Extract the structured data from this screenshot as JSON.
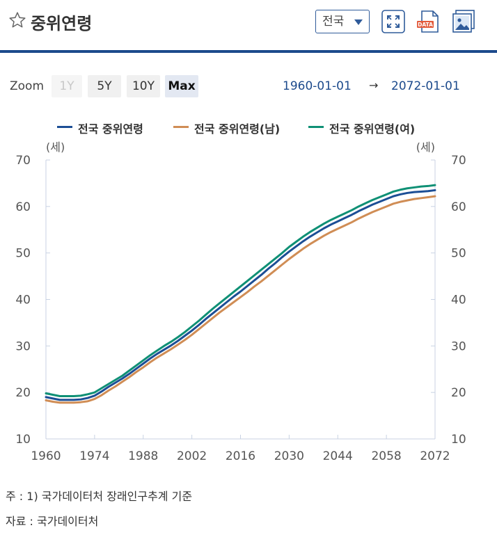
{
  "header": {
    "title": "중위연령",
    "region_select": "전국",
    "icons": [
      "star-outline-icon",
      "fullscreen-icon",
      "data-download-icon",
      "image-download-icon"
    ]
  },
  "zoom": {
    "label": "Zoom",
    "buttons": [
      {
        "label": "1Y",
        "state": "disabled"
      },
      {
        "label": "5Y",
        "state": "normal"
      },
      {
        "label": "10Y",
        "state": "normal"
      },
      {
        "label": "Max",
        "state": "active"
      }
    ],
    "range_start": "1960-01-01",
    "range_arrow": "→",
    "range_end": "2072-01-01"
  },
  "chart_data": {
    "type": "line",
    "xlabel": "",
    "ylabel_left": "(세)",
    "ylabel_right": "(세)",
    "ylim": [
      10,
      70
    ],
    "y_ticks": [
      10,
      20,
      30,
      40,
      50,
      60,
      70
    ],
    "x_ticks": [
      "1960",
      "1974",
      "1988",
      "2002",
      "2016",
      "2030",
      "2044",
      "2058",
      "2072"
    ],
    "x_range": [
      1960,
      2072
    ],
    "grid": false,
    "legend_position": "top",
    "x": [
      1960,
      1962,
      1964,
      1966,
      1968,
      1970,
      1972,
      1974,
      1976,
      1978,
      1980,
      1982,
      1984,
      1986,
      1988,
      1990,
      1992,
      1994,
      1996,
      1998,
      2000,
      2002,
      2004,
      2006,
      2008,
      2010,
      2012,
      2014,
      2016,
      2018,
      2020,
      2022,
      2024,
      2026,
      2028,
      2030,
      2032,
      2034,
      2036,
      2038,
      2040,
      2042,
      2044,
      2046,
      2048,
      2050,
      2052,
      2054,
      2056,
      2058,
      2060,
      2062,
      2064,
      2066,
      2068,
      2070,
      2072
    ],
    "series": [
      {
        "name": "전국 중위연령",
        "color": "#1c4e95",
        "values": [
          19.0,
          18.7,
          18.4,
          18.4,
          18.4,
          18.5,
          18.8,
          19.3,
          20.2,
          21.2,
          22.1,
          23.0,
          24.0,
          25.1,
          26.2,
          27.3,
          28.3,
          29.2,
          30.1,
          31.1,
          32.2,
          33.3,
          34.5,
          35.8,
          37.0,
          38.2,
          39.4,
          40.6,
          41.7,
          42.9,
          44.1,
          45.3,
          46.6,
          47.8,
          49.1,
          50.3,
          51.4,
          52.5,
          53.5,
          54.4,
          55.3,
          56.1,
          56.8,
          57.5,
          58.2,
          59.0,
          59.7,
          60.4,
          61.0,
          61.6,
          62.2,
          62.6,
          62.9,
          63.1,
          63.2,
          63.3,
          63.5
        ]
      },
      {
        "name": "전국 중위연령(남)",
        "color": "#d08d55",
        "values": [
          18.3,
          18.0,
          17.8,
          17.8,
          17.8,
          17.9,
          18.1,
          18.6,
          19.4,
          20.4,
          21.3,
          22.3,
          23.3,
          24.4,
          25.4,
          26.5,
          27.5,
          28.4,
          29.3,
          30.3,
          31.3,
          32.4,
          33.6,
          34.8,
          36.0,
          37.2,
          38.3,
          39.4,
          40.5,
          41.6,
          42.8,
          43.9,
          45.1,
          46.3,
          47.5,
          48.7,
          49.8,
          50.9,
          51.9,
          52.8,
          53.7,
          54.5,
          55.2,
          55.9,
          56.6,
          57.4,
          58.1,
          58.8,
          59.4,
          60.0,
          60.6,
          61.0,
          61.3,
          61.6,
          61.8,
          62.0,
          62.2
        ]
      },
      {
        "name": "전국 중위연령(여)",
        "color": "#0f9075",
        "values": [
          19.8,
          19.5,
          19.2,
          19.2,
          19.2,
          19.3,
          19.6,
          20.0,
          20.9,
          21.8,
          22.7,
          23.6,
          24.7,
          25.8,
          26.9,
          28.0,
          29.0,
          30.0,
          30.9,
          31.9,
          33.0,
          34.2,
          35.4,
          36.7,
          38.0,
          39.2,
          40.4,
          41.6,
          42.8,
          44.0,
          45.2,
          46.4,
          47.6,
          48.8,
          50.0,
          51.3,
          52.4,
          53.5,
          54.5,
          55.4,
          56.3,
          57.1,
          57.8,
          58.5,
          59.2,
          60.0,
          60.7,
          61.4,
          62.0,
          62.6,
          63.2,
          63.6,
          63.9,
          64.1,
          64.3,
          64.4,
          64.6
        ]
      }
    ]
  },
  "notes": {
    "note1": "주 : 1)  국가데이터처 장래인구추계 기준",
    "source": "자료 :  국가데이터처"
  }
}
